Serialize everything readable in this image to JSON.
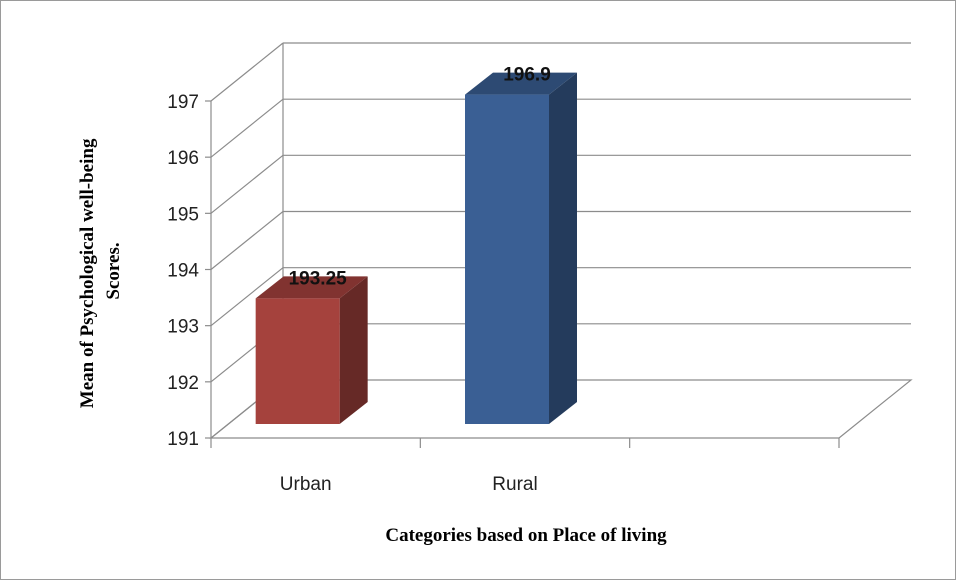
{
  "chart_data": {
    "type": "bar",
    "categories": [
      "Urban",
      "Rural"
    ],
    "values": [
      193.25,
      196.9
    ],
    "data_labels": [
      "193.25",
      "196.9"
    ],
    "xlabel": "Categories based on Place of living",
    "ylabel_lines": [
      "Mean of Psychological well-being",
      "Scores."
    ],
    "ylim": [
      191,
      197
    ],
    "yticks": [
      "191",
      "192",
      "193",
      "194",
      "195",
      "196",
      "197"
    ],
    "grid": true,
    "three_d": true,
    "colors": [
      "#a5423d",
      "#3a5f94"
    ],
    "legend": "none"
  }
}
